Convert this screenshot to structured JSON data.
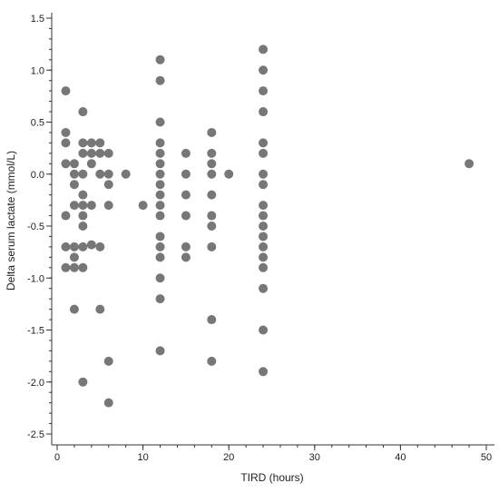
{
  "chart_data": {
    "type": "scatter",
    "title": "",
    "xlabel": "TIRD (hours)",
    "ylabel": "Delta serum lactate (mmol/L)",
    "xlim": [
      -0.5,
      51
    ],
    "ylim": [
      -2.58,
      1.55
    ],
    "xticks": [
      0,
      10,
      20,
      30,
      40,
      50
    ],
    "xtick_labels": [
      "0",
      "10",
      "20",
      "30",
      "40",
      "50"
    ],
    "xminor_step": 2,
    "yticks": [
      1.5,
      1.0,
      0.5,
      0.0,
      -0.5,
      -1.0,
      -1.5,
      -2.0,
      -2.5
    ],
    "ytick_labels": [
      "1.5",
      "1.0",
      "0.5",
      "0.0",
      "-0.5",
      "-1.0",
      "-1.5",
      "-2.0",
      "-2.5"
    ],
    "yminor_step": 0.1,
    "grid": false,
    "marker_color": "#777777",
    "points": [
      {
        "x": 1,
        "y": 0.8
      },
      {
        "x": 1,
        "y": 0.4
      },
      {
        "x": 1,
        "y": 0.3
      },
      {
        "x": 1,
        "y": 0.1
      },
      {
        "x": 1,
        "y": -0.4
      },
      {
        "x": 1,
        "y": -0.7
      },
      {
        "x": 1,
        "y": -0.9
      },
      {
        "x": 2,
        "y": 0.1
      },
      {
        "x": 2,
        "y": 0.0
      },
      {
        "x": 2,
        "y": -0.1
      },
      {
        "x": 2,
        "y": -0.3
      },
      {
        "x": 2,
        "y": -0.7
      },
      {
        "x": 2,
        "y": -0.8
      },
      {
        "x": 2,
        "y": -0.9
      },
      {
        "x": 2,
        "y": -1.3
      },
      {
        "x": 3,
        "y": 0.6
      },
      {
        "x": 3,
        "y": 0.3
      },
      {
        "x": 3,
        "y": 0.2
      },
      {
        "x": 3,
        "y": 0.0
      },
      {
        "x": 3,
        "y": -0.2
      },
      {
        "x": 3,
        "y": -0.3
      },
      {
        "x": 3,
        "y": -0.4
      },
      {
        "x": 3,
        "y": -0.5
      },
      {
        "x": 3,
        "y": -0.7
      },
      {
        "x": 3,
        "y": -0.9
      },
      {
        "x": 3,
        "y": -2.0
      },
      {
        "x": 4,
        "y": 0.3
      },
      {
        "x": 4,
        "y": 0.2
      },
      {
        "x": 4,
        "y": 0.1
      },
      {
        "x": 4,
        "y": -0.3
      },
      {
        "x": 4,
        "y": -0.68
      },
      {
        "x": 5,
        "y": 0.3
      },
      {
        "x": 5,
        "y": 0.2
      },
      {
        "x": 5,
        "y": 0.0
      },
      {
        "x": 5,
        "y": -0.7
      },
      {
        "x": 5,
        "y": -1.3
      },
      {
        "x": 6,
        "y": 0.2
      },
      {
        "x": 6,
        "y": 0.0
      },
      {
        "x": 6,
        "y": -0.1
      },
      {
        "x": 6,
        "y": -0.3
      },
      {
        "x": 6,
        "y": -1.8
      },
      {
        "x": 6,
        "y": -2.2
      },
      {
        "x": 8,
        "y": 0.0
      },
      {
        "x": 10,
        "y": -0.3
      },
      {
        "x": 12,
        "y": 1.1
      },
      {
        "x": 12,
        "y": 0.9
      },
      {
        "x": 12,
        "y": 0.5
      },
      {
        "x": 12,
        "y": 0.3
      },
      {
        "x": 12,
        "y": 0.2
      },
      {
        "x": 12,
        "y": 0.1
      },
      {
        "x": 12,
        "y": 0.0
      },
      {
        "x": 12,
        "y": -0.1
      },
      {
        "x": 12,
        "y": -0.2
      },
      {
        "x": 12,
        "y": -0.3
      },
      {
        "x": 12,
        "y": -0.4
      },
      {
        "x": 12,
        "y": -0.6
      },
      {
        "x": 12,
        "y": -0.7
      },
      {
        "x": 12,
        "y": -0.8
      },
      {
        "x": 12,
        "y": -1.0
      },
      {
        "x": 12,
        "y": -1.2
      },
      {
        "x": 12,
        "y": -1.7
      },
      {
        "x": 15,
        "y": 0.2
      },
      {
        "x": 15,
        "y": 0.0
      },
      {
        "x": 15,
        "y": -0.2
      },
      {
        "x": 15,
        "y": -0.4
      },
      {
        "x": 15,
        "y": -0.7
      },
      {
        "x": 15,
        "y": -0.8
      },
      {
        "x": 18,
        "y": 0.4
      },
      {
        "x": 18,
        "y": 0.2
      },
      {
        "x": 18,
        "y": 0.1
      },
      {
        "x": 18,
        "y": 0.0
      },
      {
        "x": 18,
        "y": -0.2
      },
      {
        "x": 18,
        "y": -0.4
      },
      {
        "x": 18,
        "y": -0.5
      },
      {
        "x": 18,
        "y": -0.7
      },
      {
        "x": 18,
        "y": -1.4
      },
      {
        "x": 18,
        "y": -1.8
      },
      {
        "x": 20,
        "y": 0.0
      },
      {
        "x": 24,
        "y": 1.2
      },
      {
        "x": 24,
        "y": 1.0
      },
      {
        "x": 24,
        "y": 0.8
      },
      {
        "x": 24,
        "y": 0.6
      },
      {
        "x": 24,
        "y": 0.3
      },
      {
        "x": 24,
        "y": 0.2
      },
      {
        "x": 24,
        "y": 0.0
      },
      {
        "x": 24,
        "y": -0.1
      },
      {
        "x": 24,
        "y": -0.3
      },
      {
        "x": 24,
        "y": -0.4
      },
      {
        "x": 24,
        "y": -0.5
      },
      {
        "x": 24,
        "y": -0.6
      },
      {
        "x": 24,
        "y": -0.7
      },
      {
        "x": 24,
        "y": -0.8
      },
      {
        "x": 24,
        "y": -0.9
      },
      {
        "x": 24,
        "y": -1.1
      },
      {
        "x": 24,
        "y": -1.5
      },
      {
        "x": 24,
        "y": -1.9
      },
      {
        "x": 48,
        "y": 0.1
      }
    ]
  }
}
